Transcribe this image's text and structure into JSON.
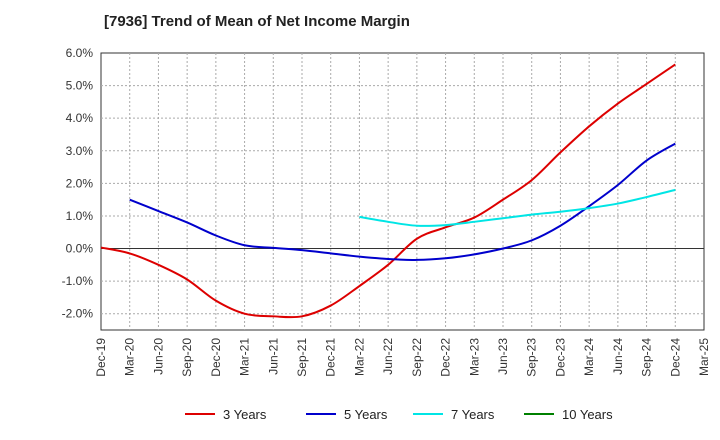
{
  "title": "[7936]  Trend of Mean of Net Income Margin",
  "chart_data": {
    "type": "line",
    "title": "[7936]  Trend of Mean of Net Income Margin",
    "xlabel": "",
    "ylabel": "",
    "x_ticks": [
      "Dec-19",
      "Mar-20",
      "Jun-20",
      "Sep-20",
      "Dec-20",
      "Mar-21",
      "Jun-21",
      "Sep-21",
      "Dec-21",
      "Mar-22",
      "Jun-22",
      "Sep-22",
      "Dec-22",
      "Mar-23",
      "Jun-23",
      "Sep-23",
      "Dec-23",
      "Mar-24",
      "Jun-24",
      "Sep-24",
      "Dec-24",
      "Mar-25"
    ],
    "y_ticks": [
      "6.0%",
      "5.0%",
      "4.0%",
      "3.0%",
      "2.0%",
      "1.0%",
      "0.0%",
      "-1.0%",
      "-2.0%"
    ],
    "ylim": [
      -2.5,
      6.0
    ],
    "grid": true,
    "legend_position": "bottom",
    "series": [
      {
        "name": "3 Years",
        "color": "#dd0000",
        "x": [
          "Dec-19",
          "Mar-20",
          "Jun-20",
          "Sep-20",
          "Dec-20",
          "Mar-21",
          "Jun-21",
          "Sep-21",
          "Dec-21",
          "Mar-22",
          "Jun-22",
          "Sep-22",
          "Dec-22",
          "Mar-23",
          "Jun-23",
          "Sep-23",
          "Dec-23",
          "Mar-24",
          "Jun-24",
          "Sep-24",
          "Dec-24"
        ],
        "values": [
          0.03,
          -0.15,
          -0.5,
          -0.95,
          -1.6,
          -2.0,
          -2.08,
          -2.08,
          -1.75,
          -1.15,
          -0.5,
          0.3,
          0.65,
          0.95,
          1.5,
          2.1,
          2.95,
          3.75,
          4.45,
          5.05,
          5.65
        ]
      },
      {
        "name": "5 Years",
        "color": "#0000cc",
        "x": [
          "Mar-20",
          "Jun-20",
          "Sep-20",
          "Dec-20",
          "Mar-21",
          "Jun-21",
          "Sep-21",
          "Dec-21",
          "Mar-22",
          "Jun-22",
          "Sep-22",
          "Dec-22",
          "Mar-23",
          "Jun-23",
          "Sep-23",
          "Dec-23",
          "Mar-24",
          "Jun-24",
          "Sep-24",
          "Dec-24"
        ],
        "values": [
          1.5,
          1.15,
          0.8,
          0.4,
          0.1,
          0.02,
          -0.05,
          -0.15,
          -0.25,
          -0.32,
          -0.35,
          -0.3,
          -0.18,
          0.0,
          0.25,
          0.7,
          1.3,
          1.95,
          2.7,
          3.22
        ]
      },
      {
        "name": "7 Years",
        "color": "#00e5e5",
        "x": [
          "Mar-22",
          "Jun-22",
          "Sep-22",
          "Dec-22",
          "Mar-23",
          "Jun-23",
          "Sep-23",
          "Dec-23",
          "Mar-24",
          "Jun-24",
          "Sep-24",
          "Dec-24"
        ],
        "values": [
          0.97,
          0.82,
          0.7,
          0.72,
          0.82,
          0.93,
          1.04,
          1.13,
          1.24,
          1.38,
          1.58,
          1.8
        ]
      },
      {
        "name": "10 Years",
        "color": "#008000",
        "x": [],
        "values": []
      }
    ]
  }
}
